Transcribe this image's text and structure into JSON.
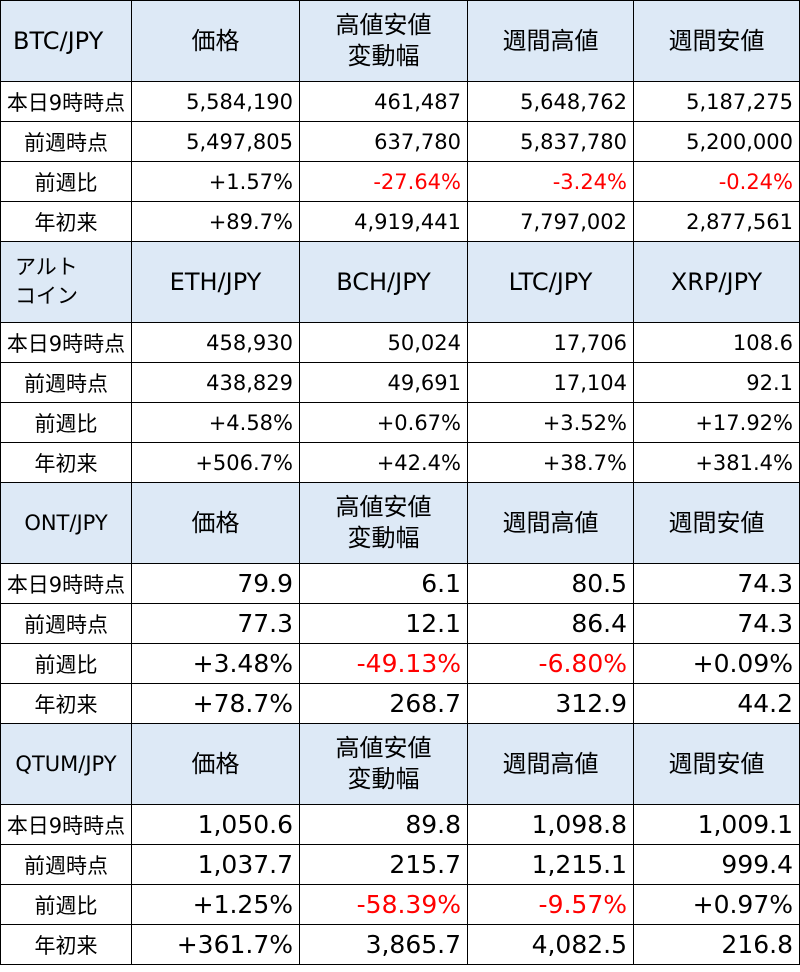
{
  "sections": [
    {
      "id": "btc",
      "header": {
        "label": "BTC/JPY",
        "columns": [
          "価格",
          "高値安値\n変動幅",
          "週間高値",
          "週間安値"
        ]
      },
      "rows": [
        {
          "label": "本日9時時点",
          "values": [
            "5,584,190",
            "461,487",
            "5,648,762",
            "5,187,275"
          ]
        },
        {
          "label": "前週時点",
          "values": [
            "5,497,805",
            "637,780",
            "5,837,780",
            "5,200,000"
          ]
        },
        {
          "label": "前週比",
          "values": [
            "+1.57%",
            "-27.64%",
            "-3.24%",
            "-0.24%"
          ]
        },
        {
          "label": "年初来",
          "values": [
            "+89.7%",
            "4,919,441",
            "7,797,002",
            "2,877,561"
          ]
        }
      ]
    },
    {
      "id": "alt",
      "header": {
        "label_line1": "アルト",
        "label_line2": "コイン",
        "columns": [
          "ETH/JPY",
          "BCH/JPY",
          "LTC/JPY",
          "XRP/JPY"
        ]
      },
      "rows": [
        {
          "label": "本日9時時点",
          "values": [
            "458,930",
            "50,024",
            "17,706",
            "108.6"
          ]
        },
        {
          "label": "前週時点",
          "values": [
            "438,829",
            "49,691",
            "17,104",
            "92.1"
          ]
        },
        {
          "label": "前週比",
          "values": [
            "+4.58%",
            "+0.67%",
            "+3.52%",
            "+17.92%"
          ]
        },
        {
          "label": "年初来",
          "values": [
            "+506.7%",
            "+42.4%",
            "+38.7%",
            "+381.4%"
          ]
        }
      ]
    },
    {
      "id": "ont",
      "header": {
        "label": "ONT/JPY",
        "columns": [
          "価格",
          "高値安値\n変動幅",
          "週間高値",
          "週間安値"
        ]
      },
      "rows": [
        {
          "label": "本日9時時点",
          "values": [
            "79.9",
            "6.1",
            "80.5",
            "74.3"
          ]
        },
        {
          "label": "前週時点",
          "values": [
            "77.3",
            "12.1",
            "86.4",
            "74.3"
          ]
        },
        {
          "label": "前週比",
          "values": [
            "+3.48%",
            "-49.13%",
            "-6.80%",
            "+0.09%"
          ]
        },
        {
          "label": "年初来",
          "values": [
            "+78.7%",
            "268.7",
            "312.9",
            "44.2"
          ]
        }
      ]
    },
    {
      "id": "qtum",
      "header": {
        "label": "QTUM/JPY",
        "columns": [
          "価格",
          "高値安値\n変動幅",
          "週間高値",
          "週間安値"
        ]
      },
      "rows": [
        {
          "label": "本日9時時点",
          "values": [
            "1,050.6",
            "89.8",
            "1,098.8",
            "1,009.1"
          ]
        },
        {
          "label": "前週時点",
          "values": [
            "1,037.7",
            "215.7",
            "1,215.1",
            "999.4"
          ]
        },
        {
          "label": "前週比",
          "values": [
            "+1.25%",
            "-58.39%",
            "-9.57%",
            "+0.97%"
          ]
        },
        {
          "label": "年初来",
          "values": [
            "+361.7%",
            "3,865.7",
            "4,082.5",
            "216.8"
          ]
        }
      ]
    }
  ],
  "colors": {
    "header_bg": "#dde9f6",
    "negative": "#ff0000",
    "border": "#000000"
  }
}
